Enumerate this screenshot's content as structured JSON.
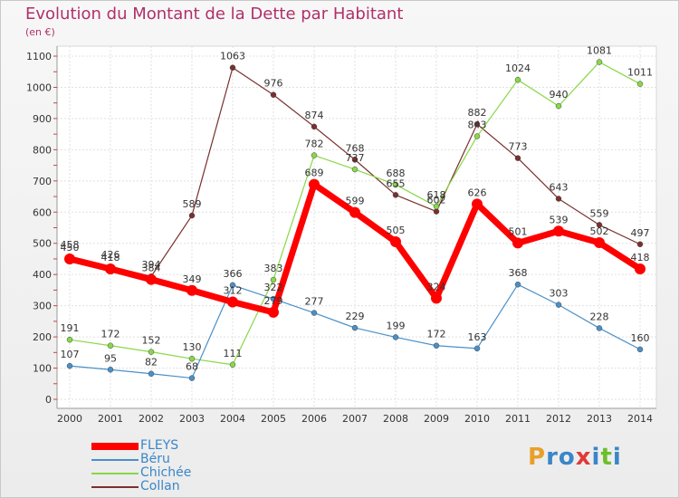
{
  "title": "Evolution du Montant de la Dette par Habitant",
  "unit": "(en €)",
  "brand": {
    "letters": [
      "P",
      "r",
      "o",
      "x",
      "i",
      "t",
      "i"
    ],
    "colors": [
      "#e8a02a",
      "#3a86c8",
      "#3a86c8",
      "#e03a3a",
      "#3a86c8",
      "#6cbf2a",
      "#3a86c8"
    ]
  },
  "chart_data": {
    "type": "line",
    "title": "Evolution du Montant de la Dette par Habitant",
    "ylabel": "(en €)",
    "xlabel": "",
    "x": [
      "2000",
      "2001",
      "2002",
      "2003",
      "2004",
      "2005",
      "2006",
      "2007",
      "2008",
      "2009",
      "2010",
      "2011",
      "2012",
      "2013",
      "2014"
    ],
    "ylim": [
      0,
      1100
    ],
    "yticks": [
      "0",
      "100",
      "200",
      "300",
      "400",
      "500",
      "600",
      "700",
      "800",
      "900",
      "1000",
      "1100"
    ],
    "grid": true,
    "legend_position": "bottom-left",
    "series": [
      {
        "name": "FLEYS",
        "color": "#ff0000",
        "width": 7,
        "values": [
          450,
          418,
          384,
          349,
          312,
          279,
          689,
          599,
          505,
          324,
          626,
          501,
          539,
          502,
          418
        ],
        "labels": [
          "450",
          "418",
          "384",
          "349",
          "312",
          "279",
          "689",
          "599",
          "505",
          "324",
          "626",
          "501",
          "539",
          "502",
          "418"
        ]
      },
      {
        "name": "Béru",
        "color": "#4a90c8",
        "width": 1.2,
        "values": [
          107,
          95,
          82,
          68,
          366,
          322,
          277,
          229,
          199,
          172,
          163,
          368,
          303,
          228,
          160
        ],
        "labels": [
          "107",
          "95",
          "82",
          "68",
          "366",
          "322",
          "277",
          "229",
          "199",
          "172",
          "163",
          "368",
          "303",
          "228",
          "160"
        ]
      },
      {
        "name": "Chichée",
        "color": "#88d848",
        "width": 1.2,
        "values": [
          191,
          172,
          152,
          130,
          111,
          383,
          782,
          737,
          688,
          618,
          843,
          1024,
          940,
          1081,
          1011
        ],
        "labels": [
          "191",
          "172",
          "152",
          "130",
          "111",
          "383",
          "782",
          "737",
          "688",
          "618",
          "843",
          "1024",
          "940",
          "1081",
          "1011"
        ]
      },
      {
        "name": "Collan",
        "color": "#7a3030",
        "width": 1.2,
        "values": [
          458,
          426,
          394,
          589,
          1063,
          976,
          874,
          768,
          655,
          602,
          882,
          773,
          643,
          559,
          497
        ],
        "labels": [
          "458",
          "426",
          "394",
          "589",
          "1063",
          "976",
          "874",
          "768",
          "655",
          "602",
          "882",
          "773",
          "643",
          "559",
          "497"
        ]
      }
    ]
  }
}
